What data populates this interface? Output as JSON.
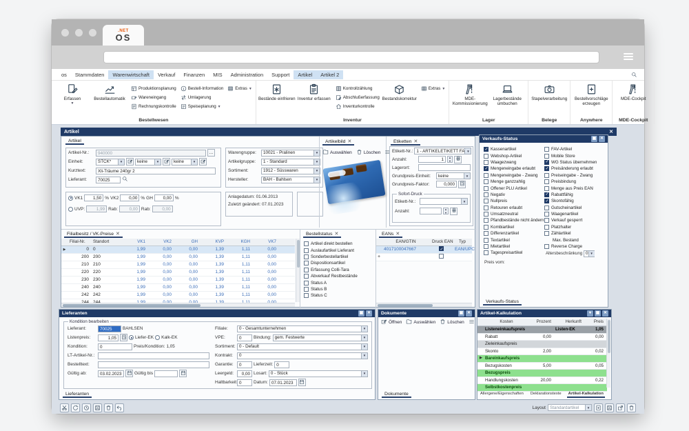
{
  "window": {
    "tab_logo_top": ".NET",
    "tab_logo_main": "OS",
    "menu_items": [
      {
        "label": "os",
        "active": false
      },
      {
        "label": "Stammdaten",
        "active": false
      },
      {
        "label": "Warenwirtschaft",
        "active": true
      },
      {
        "label": "Verkauf",
        "active": false
      },
      {
        "label": "Finanzen",
        "active": false
      },
      {
        "label": "MIS",
        "active": false
      },
      {
        "label": "Administration",
        "active": false
      },
      {
        "label": "Support",
        "active": false
      },
      {
        "label": "Artikel",
        "active": true
      },
      {
        "label": "Artikel 2",
        "active": true
      }
    ]
  },
  "ribbon": {
    "groups": [
      {
        "label": "Bestellwesen",
        "blocks": [
          {
            "type": "big",
            "label": "Erfassen",
            "icon": "doc-edit",
            "caret": true
          },
          {
            "type": "big",
            "label": "Bestellautomatik",
            "icon": "chart"
          },
          {
            "type": "col",
            "items": [
              {
                "label": "Produktionsplanung",
                "icon": "sm-plan"
              },
              {
                "label": "Wareneingang",
                "icon": "sm-in"
              },
              {
                "label": "Rechnungskontrolle",
                "icon": "sm-invoice"
              }
            ]
          },
          {
            "type": "col",
            "items": [
              {
                "label": "Bestell-Information",
                "icon": "sm-info"
              },
              {
                "label": "Umlagerung",
                "icon": "sm-transfer"
              },
              {
                "label": "Speiseplanung",
                "icon": "sm-menu",
                "caret": true
              }
            ]
          },
          {
            "type": "col",
            "items": [
              {
                "label": "Extras",
                "icon": "grid",
                "caret": true
              }
            ]
          }
        ]
      },
      {
        "label": "Inventur",
        "blocks": [
          {
            "type": "big",
            "label": "Bestände einfrieren",
            "icon": "freeze-doc"
          },
          {
            "type": "big",
            "label": "Inventur erfassen",
            "icon": "clipboard"
          },
          {
            "type": "col",
            "items": [
              {
                "label": "Kontrollzählung",
                "icon": "sm-count"
              },
              {
                "label": "Abschlußerfassung",
                "icon": "sm-note"
              },
              {
                "label": "Inventurkontrolle",
                "icon": "sm-home"
              }
            ]
          },
          {
            "type": "big",
            "label": "Bestandskorrektur",
            "icon": "box-check"
          },
          {
            "type": "col",
            "items": [
              {
                "label": "Extras",
                "icon": "grid",
                "caret": true
              }
            ]
          }
        ]
      },
      {
        "label": "Lager",
        "blocks": [
          {
            "type": "big",
            "label": "MDE-Kommissionierung",
            "icon": "scanner"
          },
          {
            "type": "big",
            "label": "Lagerbestände umbuchen",
            "icon": "laptop"
          }
        ]
      },
      {
        "label": "Belege",
        "blocks": [
          {
            "type": "big",
            "label": "Stapelverarbeitung",
            "icon": "camera"
          }
        ]
      },
      {
        "label": "Anywhere",
        "blocks": [
          {
            "type": "big",
            "label": "Bestellvorschläge erzeugen",
            "icon": "doc-plus"
          }
        ]
      },
      {
        "label": "MDE-Cockpit",
        "blocks": [
          {
            "type": "big",
            "label": "MDE-Cockpit",
            "icon": "scanner"
          }
        ]
      }
    ]
  },
  "artikel": {
    "title": "Artikel",
    "tab": "Artikel",
    "artikel_nr_label": "Artikel-Nr.:",
    "artikel_nr": "940000",
    "einheit_label": "Einheit:",
    "einheit": "STCK*",
    "einheit2": "keine",
    "einheit3": "keine",
    "kurztext_label": "Kurztext:",
    "kurztext": "Xli-Träume 240gr 2",
    "lieferant_label": "Lieferant:",
    "lieferant": "70025",
    "warengruppe_label": "Warengruppe:",
    "warengruppe": "10021 - Pralinen",
    "artikelgruppe_label": "Artikelgruppe:",
    "artikelgruppe": "1 - Standard",
    "sortiment_label": "Sortiment:",
    "sortiment": "1912 - Süsswaren",
    "hersteller_label": "Hersteller:",
    "hersteller": "BAH - Bahlsen",
    "vk1_label": "VK1",
    "vk1": "1,50",
    "pct": "%",
    "vk2_label": "VK2",
    "vk2": "0,00",
    "gh_label": "GH",
    "gh": "0,00",
    "uvp_label": "UVP:",
    "uvp": "1,99",
    "rab_label": "Rab:",
    "rab1": "0,00",
    "rab2": "0,00",
    "anlagedatum_label": "Anlagedatum:",
    "anlagedatum": "01.06.2013",
    "geaendert_label": "Zuletzt geändert:",
    "geaendert": "07.01.2023"
  },
  "artikelbild": {
    "tab": "Artikelbild",
    "auswaehlen": "Auswählen",
    "loeschen": "Löschen"
  },
  "etiketten": {
    "tab": "Etiketten",
    "etikett_nr_label": "Etikett-Nr.:",
    "etikett_nr": "1 - ARTIKELETIKETT FA",
    "anzahl_label": "Anzahl:",
    "anzahl": "1",
    "lagerort_label": "Lagerort:",
    "lagerort": "",
    "gp_einheit_label": "Grundpreis-Einheit:",
    "gp_einheit": "keine",
    "gp_faktor_label": "Grundpreis-Faktor:",
    "gp_faktor": "0,000",
    "sofort_druck_label": "Sofort-Druck",
    "sd_etikett_label": "Etikett-Nr.:",
    "sd_etikett": "",
    "sd_anzahl_label": "Anzahl:",
    "sd_anzahl": ""
  },
  "verkaufs_status": {
    "title": "Verkaufs-Status",
    "tab": "Verkaufs-Status",
    "left": [
      {
        "label": "Kassenartikel",
        "checked": true
      },
      {
        "label": "Webshop-Artikel"
      },
      {
        "label": "Waagezwang"
      },
      {
        "label": "Mengeneingabe erlaubt",
        "checked": true
      },
      {
        "label": "Mengeneingabe - Zwang"
      },
      {
        "label": "Menge ganzzahlig"
      },
      {
        "label": "Offener PLU Artikel"
      },
      {
        "label": "Negativ"
      },
      {
        "label": "Nullpreis"
      },
      {
        "label": "Retouren erlaubt"
      },
      {
        "label": "Umsatzneutral"
      },
      {
        "label": "Pfandbestände nicht ändern"
      },
      {
        "label": "Kombiartikel"
      },
      {
        "label": "Differenzartikel"
      },
      {
        "label": "Textartikel"
      },
      {
        "label": "Mietartikel"
      },
      {
        "label": "Tagespreisartikel"
      }
    ],
    "right": [
      {
        "label": "FAV-Artikel"
      },
      {
        "label": "Mobile Store"
      },
      {
        "label": "WG Status übernehmen",
        "checked": true
      },
      {
        "label": "Preisänderung erlaubt",
        "checked": true
      },
      {
        "label": "Preiseingabe - Zwang"
      },
      {
        "label": "Preisbindung"
      },
      {
        "label": "Menge aus Preis EAN"
      },
      {
        "label": "Rabattfähig",
        "checked": true
      },
      {
        "label": "Skontofähig",
        "checked": true
      },
      {
        "label": "Gutscheinartikel"
      },
      {
        "label": "Waagenartikel"
      },
      {
        "label": "Verkauf gesperrt"
      },
      {
        "label": "Platzhalter"
      },
      {
        "label": "Zählartikel"
      },
      {
        "label": "Max. Bestand",
        "nocheck": true
      },
      {
        "label": "Reverse Charge"
      }
    ],
    "alter_label": "Altersbeschränkung",
    "alter_value": "0",
    "preis_vom_label": "Preis vom:"
  },
  "filial_grid": {
    "tab": "Filialbesitz / VK-Preise",
    "columns": [
      "Filial-Nr.",
      "Standort",
      "VK1",
      "VK2",
      "GH",
      "KVP",
      "KGH",
      "VK7"
    ],
    "rows": [
      [
        "0",
        "0",
        "1,99",
        "0,00",
        "0,00",
        "1,39",
        "1,11",
        "0,00"
      ],
      [
        "200",
        "200",
        "1,99",
        "0,00",
        "0,00",
        "1,39",
        "1,11",
        "0,00"
      ],
      [
        "210",
        "210",
        "1,99",
        "0,00",
        "0,00",
        "1,39",
        "1,11",
        "0,00"
      ],
      [
        "220",
        "220",
        "1,99",
        "0,00",
        "0,00",
        "1,39",
        "1,11",
        "0,00"
      ],
      [
        "230",
        "230",
        "1,99",
        "0,00",
        "0,00",
        "1,39",
        "1,11",
        "0,00"
      ],
      [
        "240",
        "240",
        "1,99",
        "0,00",
        "0,00",
        "1,39",
        "1,11",
        "0,00"
      ],
      [
        "242",
        "242",
        "1,99",
        "0,00",
        "0,00",
        "1,39",
        "1,11",
        "0,00"
      ],
      [
        "244",
        "244",
        "1,99",
        "0,00",
        "0,00",
        "1,39",
        "1,11",
        "0,00"
      ]
    ]
  },
  "bestellstatus": {
    "tab": "Bestellstatus",
    "items": [
      "Artikel direkt bestellen",
      "Auslaufartikel Lieferant",
      "Sonderbestellartikel",
      "Dispositionsartikel",
      "Erfassung Colli-Tara",
      "Abverkauf Restbestände",
      "Status A",
      "Status B",
      "Status C"
    ]
  },
  "eans": {
    "tab": "EANs",
    "columns": [
      "EAN/GTIN",
      "Druck EAN",
      "Typ"
    ],
    "rows": [
      {
        "ean": "4017100047667",
        "druck": true,
        "typ": "EAN/UPC"
      }
    ],
    "new_row_symbol": "+"
  },
  "lieferanten": {
    "title": "Lieferanten",
    "tab": "Lieferanten",
    "groupbox": "Kondition bearbeiten",
    "lieferant_label": "Lieferant:",
    "lieferant": "70025",
    "lieferant_name": "BAHLSEN",
    "listenpreis_label": "Listenpreis:",
    "listenpreis": "1,05",
    "radio1": "Liefer-EK",
    "radio2": "Kalk-EK",
    "kondition_label": "Kondition:",
    "kondition": "0",
    "preis_kondition_label": "Preis/Kondition:",
    "preis_kondition": "1,05",
    "lt_artikel_label": "LT-Artikel-Nr.:",
    "lt_artikel": "",
    "bestelltext_label": "Bestelltext:",
    "bestelltext": "",
    "gueltig_ab_label": "Gültig ab:",
    "gueltig_ab": "03.02.2023",
    "gueltig_bis_label": "Gültig bis",
    "gueltig_bis": "",
    "filiale_label": "Filiale:",
    "filiale": "0 - Gesamtunternehmen",
    "vpe_label": "VPE:",
    "vpe": "0",
    "bindung_label": "Bindung:",
    "bindung": "gem. Festwerte",
    "sortiment_label": "Sortiment:",
    "sortiment": "0 - Default",
    "kontrakt_label": "Kontrakt:",
    "kontrakt": "0",
    "garantie_label": "Garantie:",
    "garantie": "0",
    "lieferzeit_label": "Lieferzeit:",
    "lieferzeit": "0",
    "leergeld_label": "Leergeld:",
    "leergeld": "0,00",
    "losart_label": "Losart:",
    "losart": "0 - Stück",
    "haltbarkeit_label": "Haltbarkeit:",
    "haltbarkeit": "0",
    "datum_label": "Datum:",
    "datum": "07.01.2023"
  },
  "dokumente": {
    "title": "Dokumente",
    "tab": "Dokumente",
    "oeffnen": "Öffnen",
    "auswaehlen": "Auswählen",
    "loeschen": "Löschen"
  },
  "kalkulation": {
    "title": "Artikel-Kalkulation",
    "columns": [
      "Kosten",
      "Prozent",
      "Herkunft",
      "Preis"
    ],
    "rows": [
      {
        "kosten": "Listeneinkaufspreis",
        "prozent": "",
        "herkunft": "Listen-EK",
        "preis": "1,05",
        "style": "dark"
      },
      {
        "kosten": "Rabatt",
        "prozent": "0,00",
        "herkunft": "",
        "preis": "0,00",
        "style": "plain"
      },
      {
        "kosten": "Zieleinkaufspreis",
        "prozent": "",
        "herkunft": "",
        "preis": "",
        "style": "gray"
      },
      {
        "kosten": "Skonto",
        "prozent": "2,00",
        "herkunft": "",
        "preis": "0,02",
        "style": "plain"
      },
      {
        "kosten": "Bareinkaufspreis",
        "prozent": "",
        "herkunft": "",
        "preis": "",
        "style": "green",
        "marker": true
      },
      {
        "kosten": "Bezugskosten",
        "prozent": "5,00",
        "herkunft": "",
        "preis": "0,05",
        "style": "plain"
      },
      {
        "kosten": "Bezugspreis",
        "prozent": "",
        "herkunft": "",
        "preis": "",
        "style": "green"
      },
      {
        "kosten": "Handlungskosten",
        "prozent": "20,00",
        "herkunft": "",
        "preis": "0,22",
        "style": "plain"
      },
      {
        "kosten": "Selbstkostenpreis",
        "prozent": "",
        "herkunft": "",
        "preis": "",
        "style": "green"
      }
    ],
    "tabs": [
      {
        "label": "Allergene/Eigenschaften",
        "active": false
      },
      {
        "label": "Deklarationstexte",
        "active": false
      },
      {
        "label": "Artikel-Kalkulation",
        "active": true
      }
    ]
  },
  "statusbar": {
    "layout_label": "Layout",
    "layout_value": "Standardartikel",
    "toolbar_left": [
      {
        "icon": "sm-cut",
        "name": "cut"
      },
      {
        "icon": "sm-refresh",
        "name": "refresh"
      },
      {
        "icon": "sm-clock",
        "name": "history"
      },
      {
        "icon": "sm-save",
        "name": "save"
      },
      {
        "icon": "trash",
        "name": "delete"
      },
      {
        "icon": "sm-undo",
        "name": "undo"
      }
    ],
    "toolbar_right": [
      {
        "icon": "sm-new",
        "name": "new-layout"
      },
      {
        "icon": "sm-save",
        "name": "save-layout"
      },
      {
        "icon": "sm-export",
        "name": "export-layout"
      },
      {
        "icon": "trash",
        "name": "delete-layout"
      }
    ]
  }
}
